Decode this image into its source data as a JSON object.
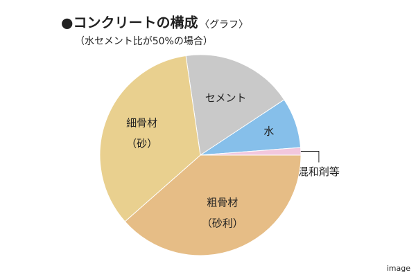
{
  "chart_data": {
    "type": "pie",
    "title": "●コンクリートの構成",
    "title_note": "〈グラフ〉",
    "subtitle": "（水セメント比が50%の場合）",
    "caption": "image",
    "categories": [
      "セメント",
      "水",
      "混和剤等",
      [
        "粗骨材",
        "（砂利）"
      ],
      [
        "細骨材",
        "（砂）"
      ]
    ],
    "values": [
      18,
      8.1,
      1.2,
      38.5,
      34.2
    ],
    "colors": [
      "#c9c9c9",
      "#86bfea",
      "#f2c7dd",
      "#e6bd86",
      "#e9d08f"
    ]
  }
}
